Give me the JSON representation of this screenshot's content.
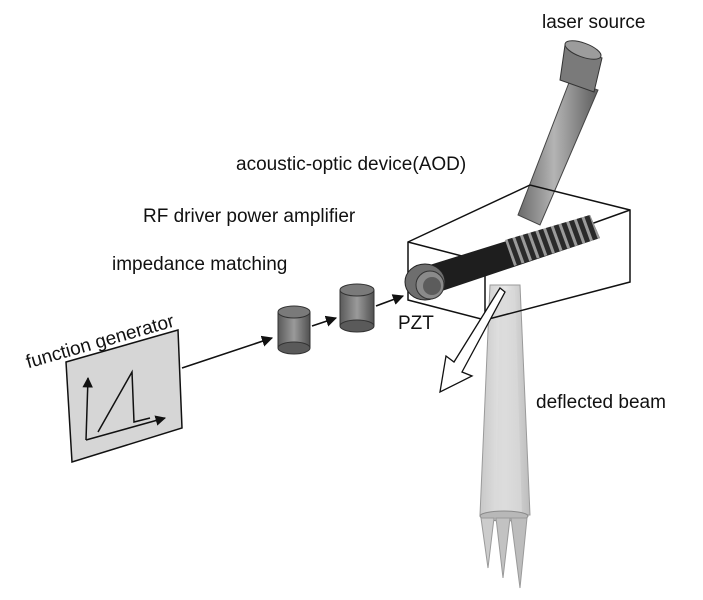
{
  "labels": {
    "laser_source": "laser source",
    "aod": "acoustic-optic device(AOD)",
    "rf_driver": "RF driver power amplifier",
    "impedance": "impedance matching",
    "pzt": "PZT",
    "function_generator": "function generator",
    "deflected_beam": "deflected beam"
  },
  "colors": {
    "component_dark": "#6f6f6f",
    "component_mid": "#8e8e8e",
    "beam": "#bdbdbd",
    "outline": "#111111",
    "panel_fill": "#d6d6d6"
  }
}
